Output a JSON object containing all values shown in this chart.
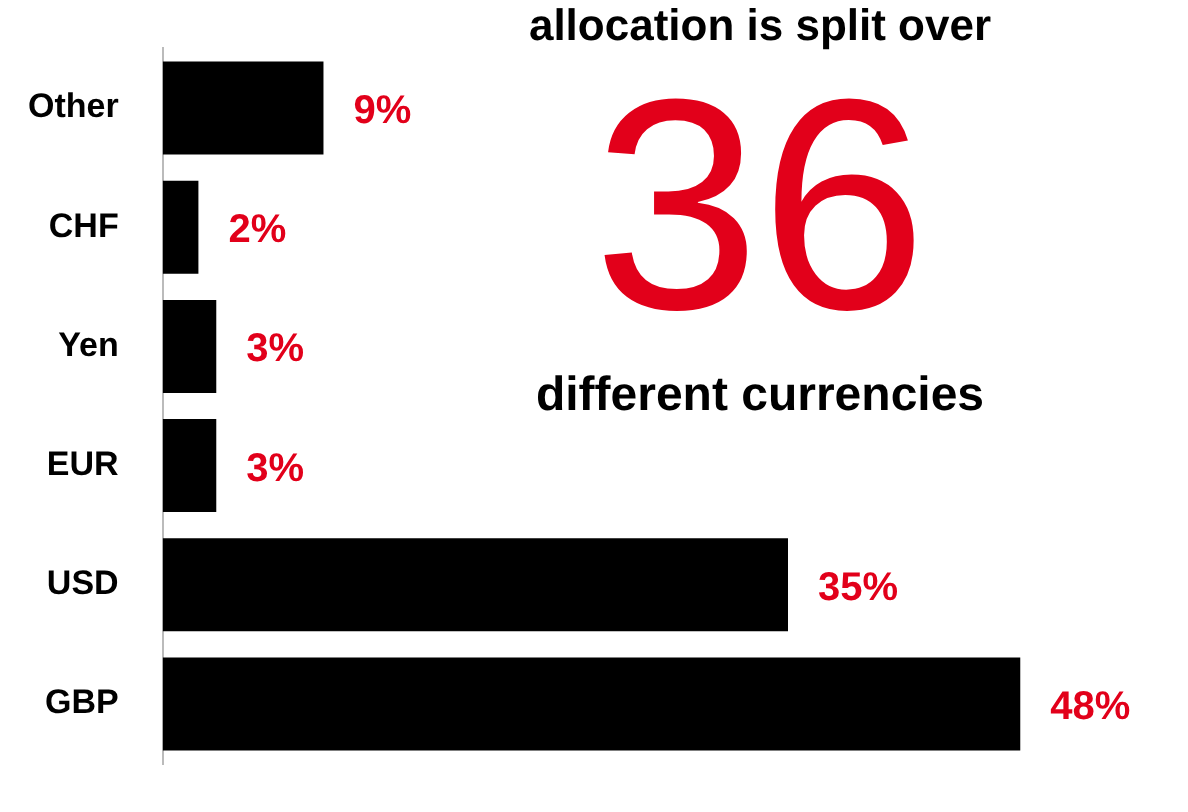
{
  "chart_data": {
    "type": "bar",
    "orientation": "horizontal",
    "categories": [
      "Other",
      "CHF",
      "Yen",
      "EUR",
      "USD",
      "GBP"
    ],
    "values": [
      9,
      2,
      3,
      3,
      35,
      48
    ],
    "color": "#000000",
    "value_labels": [
      "9%",
      "2%",
      "3%",
      "3%",
      "35%",
      "48%"
    ],
    "annotations": [
      "allocation is split over",
      "36",
      "different currencies"
    ]
  }
}
